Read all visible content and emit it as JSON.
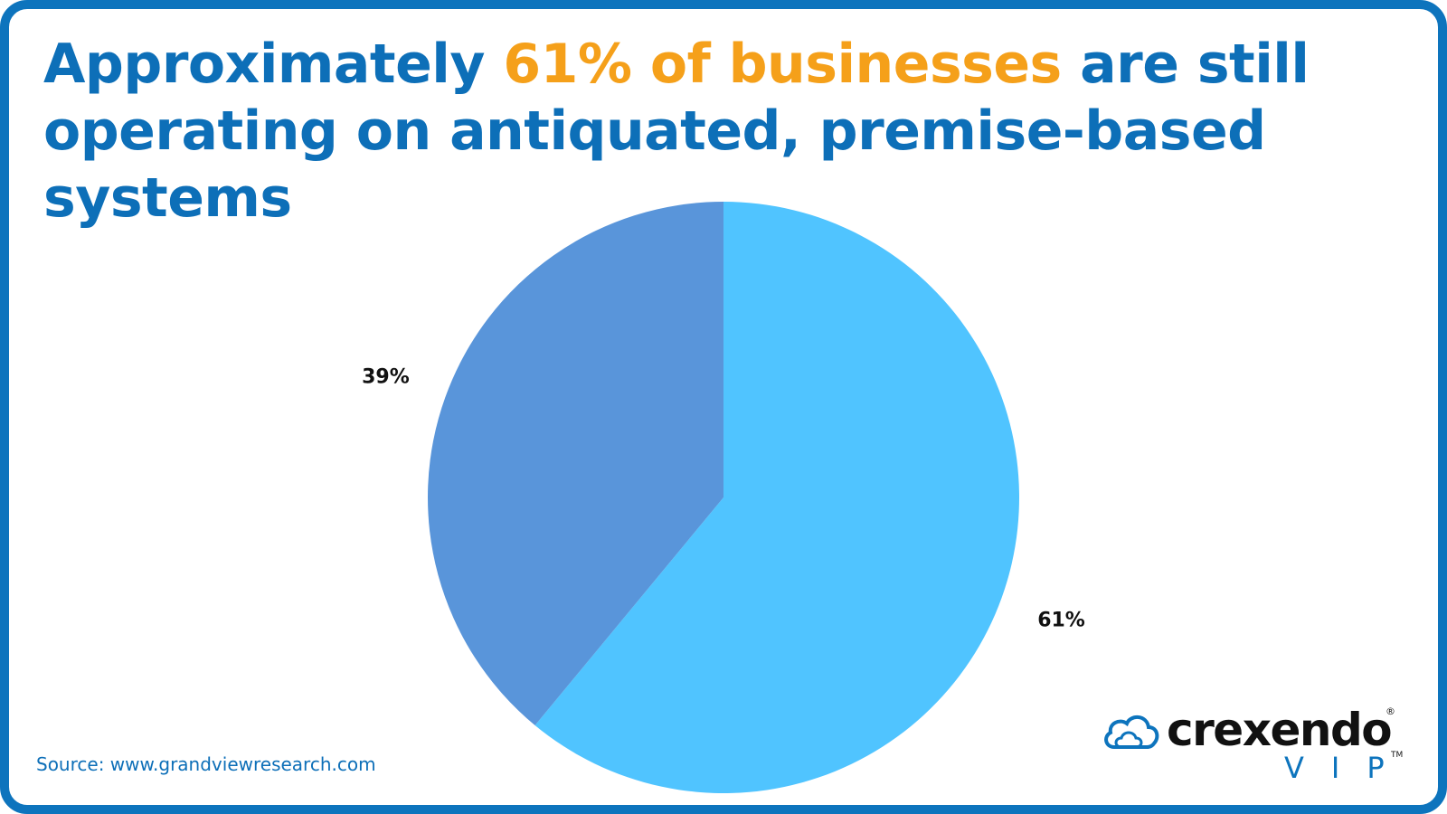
{
  "title": {
    "before": "Approximately ",
    "highlight": "61% of businesses",
    "after": " are still operating on antiquated, premise-based systems"
  },
  "source": "Source: www.grandviewresearch.com",
  "logo": {
    "word": "crexendo",
    "sub": "VIP",
    "reg": "®",
    "tm": "TM"
  },
  "colors": {
    "frame": "#0d74bd",
    "title": "#0d6fb8",
    "highlight": "#f5a01a",
    "slice_large": "#50c4ff",
    "slice_small": "#5995da"
  },
  "chart_data": {
    "type": "pie",
    "slices": [
      {
        "label": "61%",
        "value": 61,
        "color": "#50c4ff"
      },
      {
        "label": "39%",
        "value": 39,
        "color": "#5995da"
      }
    ],
    "start": "12 o'clock, clockwise",
    "legend": "none"
  }
}
